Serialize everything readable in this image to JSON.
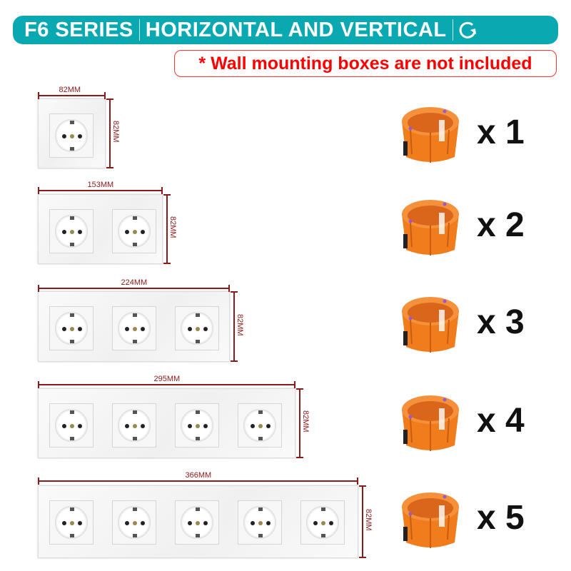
{
  "banner": {
    "series": "F6 SERIES",
    "title": "HORIZONTAL AND VERTICAL",
    "icon": "rotate-icon",
    "color": "#0aa9b2"
  },
  "note": "* Wall mounting boxes are not included",
  "rows": [
    {
      "gangs": 1,
      "width_label": "82MM",
      "height_label": "82MM",
      "quantity": "x 1"
    },
    {
      "gangs": 2,
      "width_label": "153MM",
      "height_label": "82MM",
      "quantity": "x 2"
    },
    {
      "gangs": 3,
      "width_label": "224MM",
      "height_label": "82MM",
      "quantity": "x 3"
    },
    {
      "gangs": 4,
      "width_label": "295MM",
      "height_label": "82MM",
      "quantity": "x 4"
    },
    {
      "gangs": 5,
      "width_label": "366MM",
      "height_label": "82MM",
      "quantity": "x 5"
    }
  ],
  "colors": {
    "dimension": "#8b1a1a",
    "box": "#f07c1c",
    "note": "#ff0000"
  }
}
